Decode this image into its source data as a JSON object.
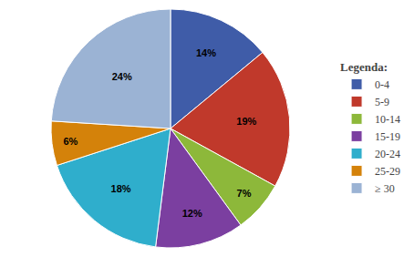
{
  "chart_data": {
    "type": "pie",
    "categories": [
      "0-4",
      "5-9",
      "10-14",
      "15-19",
      "20-24",
      "25-29",
      "≥ 30"
    ],
    "values": [
      14,
      19,
      7,
      12,
      18,
      6,
      24
    ],
    "value_labels": [
      "14%",
      "19%",
      "7%",
      "12%",
      "18%",
      "6%",
      "24%"
    ],
    "colors": [
      "#3F5CA8",
      "#C0392B",
      "#8DB83A",
      "#7B3FA0",
      "#2FAECC",
      "#D4820A",
      "#9BB3D4"
    ],
    "legend_title": "Legenda:",
    "legend": "right",
    "data_labels": true
  }
}
